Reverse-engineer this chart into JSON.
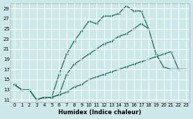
{
  "xlabel": "Humidex (Indice chaleur)",
  "bg_color": "#cce8e8",
  "grid_color": "#ffffff",
  "line_color": "#1a6b5a",
  "xlim": [
    -0.5,
    23.5
  ],
  "ylim": [
    10.5,
    30.0
  ],
  "xticks": [
    0,
    1,
    2,
    3,
    4,
    5,
    6,
    7,
    8,
    9,
    10,
    11,
    12,
    13,
    14,
    15,
    16,
    17,
    18,
    19,
    20,
    21,
    22,
    23
  ],
  "yticks": [
    11,
    13,
    15,
    17,
    19,
    21,
    23,
    25,
    27,
    29
  ],
  "line1_x": [
    0,
    1,
    2,
    3,
    4,
    5,
    6,
    7,
    8,
    9,
    10,
    11,
    12,
    13,
    14,
    15,
    16,
    17,
    18
  ],
  "line1_y": [
    14.0,
    13.0,
    13.0,
    11.0,
    11.5,
    11.5,
    16.0,
    20.0,
    22.5,
    24.5,
    26.5,
    26.0,
    27.5,
    27.5,
    28.0,
    29.5,
    28.5,
    28.5,
    25.0
  ],
  "line2_x": [
    0,
    1,
    2,
    3,
    4,
    5,
    6,
    7,
    8,
    9,
    10,
    11,
    12,
    13,
    14,
    15,
    16,
    17,
    18,
    19,
    20,
    21,
    22
  ],
  "line2_y": [
    14.0,
    13.0,
    13.0,
    11.0,
    11.5,
    11.5,
    12.0,
    16.0,
    18.0,
    19.0,
    20.0,
    21.0,
    22.0,
    22.5,
    23.5,
    24.0,
    25.0,
    26.0,
    25.0,
    20.0,
    17.5,
    17.0,
    17.0
  ],
  "line3_x": [
    0,
    1,
    2,
    3,
    4,
    5,
    6,
    7,
    8,
    9,
    10,
    11,
    12,
    13,
    14,
    15,
    16,
    17,
    18,
    19,
    20,
    21,
    22,
    23
  ],
  "line3_y": [
    14.0,
    13.0,
    13.0,
    11.0,
    11.5,
    11.5,
    12.0,
    12.5,
    13.5,
    14.0,
    15.0,
    15.5,
    16.0,
    16.5,
    17.0,
    17.5,
    18.0,
    18.5,
    19.0,
    19.5,
    20.0,
    20.5,
    17.0,
    17.0
  ]
}
